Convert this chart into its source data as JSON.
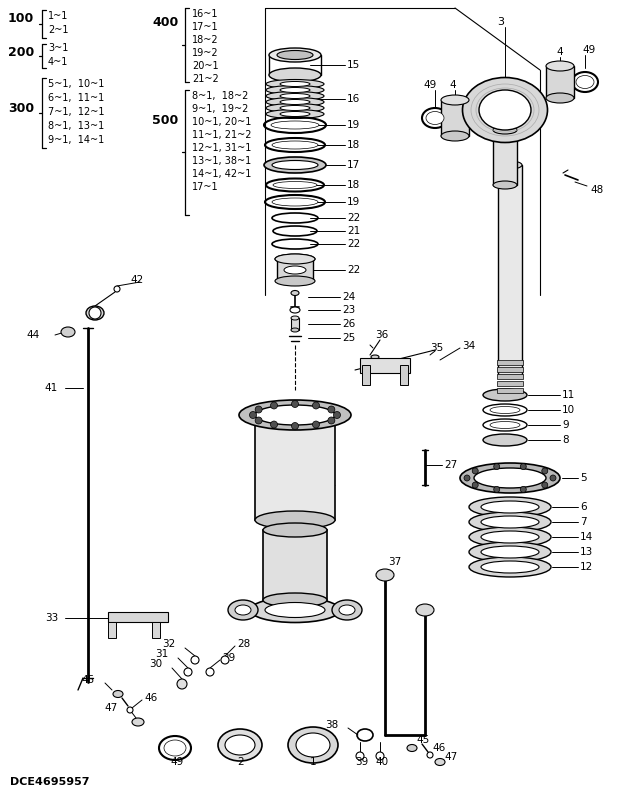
{
  "background_color": "#ffffff",
  "text_color": "#000000",
  "watermark": "DCE4695957",
  "groups": {
    "100": [
      "1~1",
      "2~1"
    ],
    "200": [
      "3~1",
      "4~1"
    ],
    "300": [
      "5~1,  10~1",
      "6~1,  11~1",
      "7~1,  12~1",
      "8~1,  13~1",
      "9~1,  14~1"
    ],
    "400": [
      "16~1",
      "17~1",
      "18~2",
      "19~2",
      "20~1",
      "21~2"
    ],
    "500": [
      "8~1,  18~2",
      "9~1,  19~2",
      "10~1, 20~1",
      "11~1, 21~2",
      "12~1, 31~1",
      "13~1, 38~1",
      "14~1, 42~1",
      "17~1"
    ]
  }
}
